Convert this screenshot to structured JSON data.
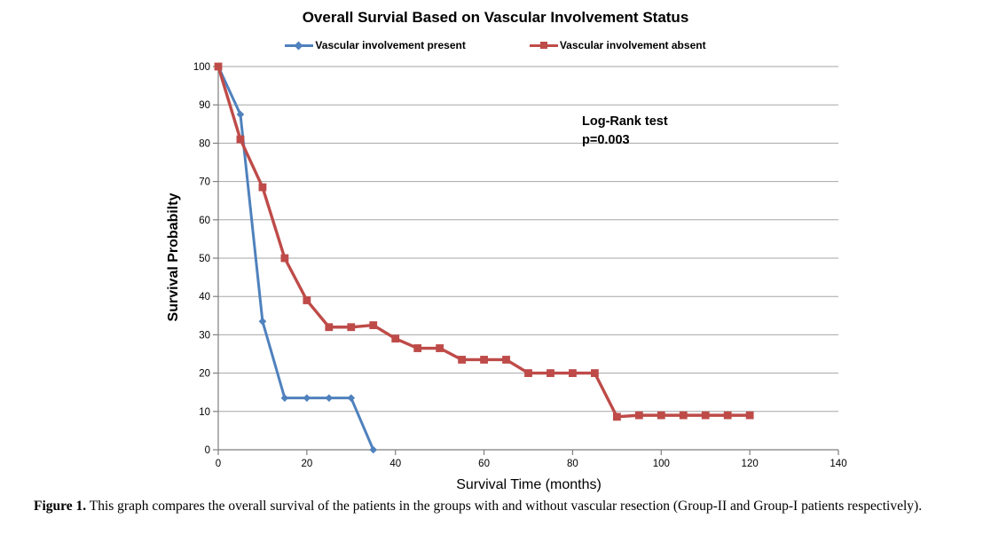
{
  "chart_data": {
    "type": "line",
    "title": "Overall Survial Based on Vascular Involvement Status",
    "xlabel": "Survival Time (months)",
    "ylabel": "Survival Probabilty",
    "xlim": [
      0,
      140
    ],
    "ylim": [
      0,
      100
    ],
    "x_ticks": [
      0,
      20,
      40,
      60,
      80,
      100,
      120,
      140
    ],
    "y_ticks": [
      0,
      10,
      20,
      30,
      40,
      50,
      60,
      70,
      80,
      90,
      100
    ],
    "grid": "horizontal",
    "legend_position": "top",
    "annotation": {
      "line1": "Log-Rank test",
      "line2": "p=0.003"
    },
    "series": [
      {
        "name": "Vascular involvement present",
        "color": "#4f81bd",
        "marker": "diamond",
        "points": [
          [
            0,
            100
          ],
          [
            5,
            87.5
          ],
          [
            10,
            33.5
          ],
          [
            15,
            13.5
          ],
          [
            20,
            13.5
          ],
          [
            25,
            13.5
          ],
          [
            30,
            13.5
          ],
          [
            35,
            0
          ]
        ]
      },
      {
        "name": "Vascular involvement absent",
        "color": "#be4b48",
        "marker": "square",
        "points": [
          [
            0,
            100
          ],
          [
            5,
            81
          ],
          [
            10,
            68.5
          ],
          [
            15,
            50
          ],
          [
            20,
            39
          ],
          [
            25,
            32
          ],
          [
            30,
            32
          ],
          [
            35,
            32.5
          ],
          [
            40,
            29
          ],
          [
            45,
            26.5
          ],
          [
            50,
            26.5
          ],
          [
            55,
            23.5
          ],
          [
            60,
            23.5
          ],
          [
            65,
            23.5
          ],
          [
            70,
            20
          ],
          [
            75,
            20
          ],
          [
            80,
            20
          ],
          [
            85,
            20
          ],
          [
            90,
            8.6
          ],
          [
            95,
            9
          ],
          [
            100,
            9
          ],
          [
            105,
            9
          ],
          [
            110,
            9
          ],
          [
            115,
            9
          ],
          [
            120,
            9
          ]
        ]
      }
    ]
  },
  "caption": {
    "label": "Figure 1.",
    "text": "This graph compares the overall survival of the patients in the groups with and without vascular resection (Group-II and Group-I patients respectively)."
  },
  "colors": {
    "axis": "#7f7f7f",
    "gridline": "#a6a6a6",
    "tick_text": "#000000"
  }
}
